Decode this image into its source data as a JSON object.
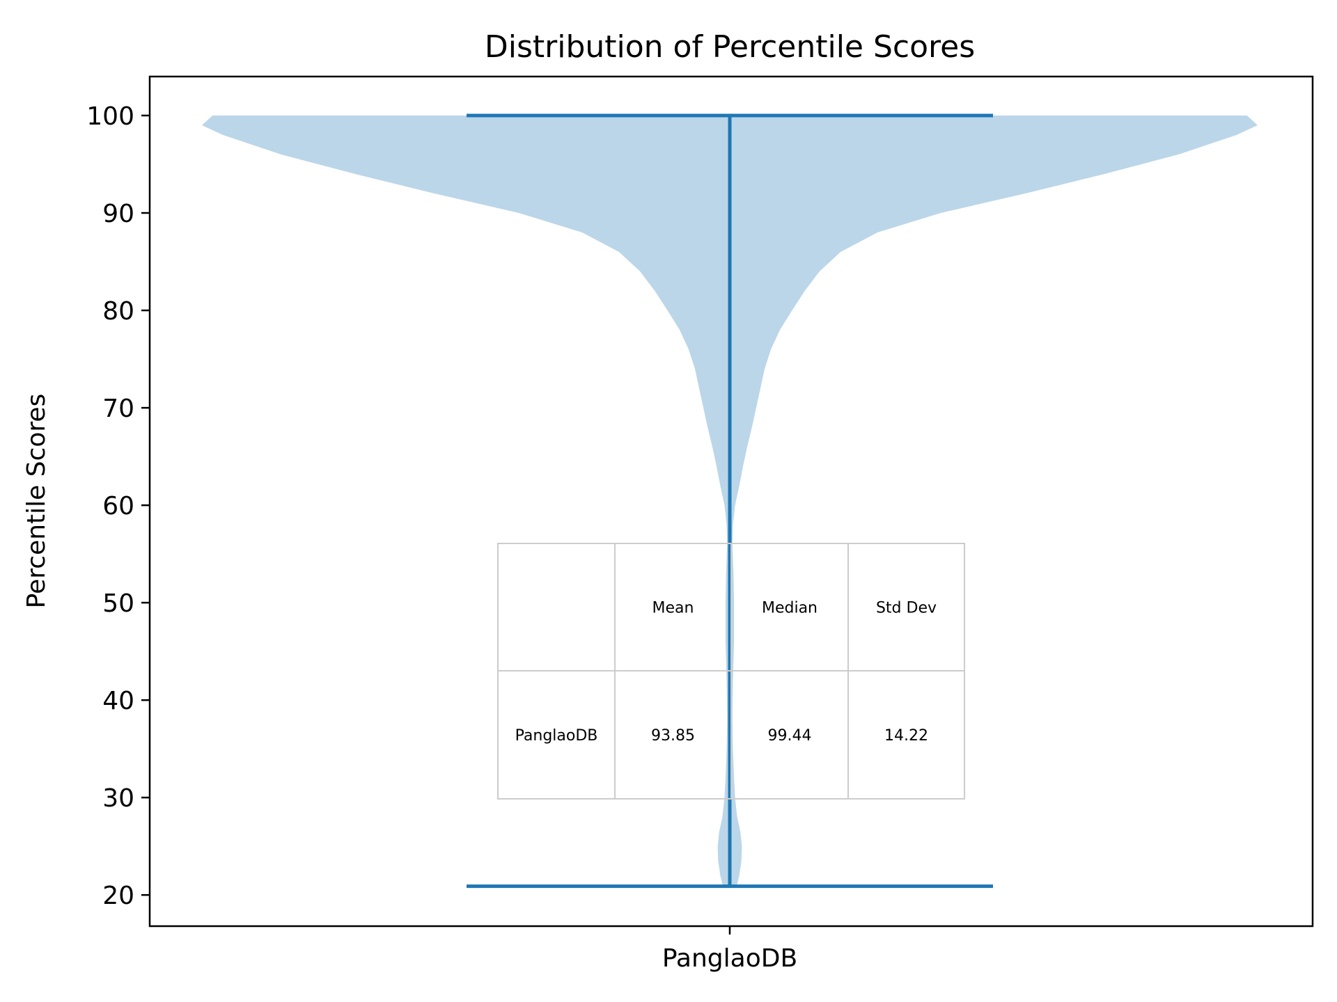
{
  "chart_data": {
    "type": "violin",
    "title": "Distribution of Percentile Scores",
    "xlabel": "",
    "ylabel": "Percentile Scores",
    "categories": [
      "PanglaoDB"
    ],
    "ylim": [
      16.8,
      104
    ],
    "yticks": [
      20,
      30,
      40,
      50,
      60,
      70,
      80,
      90,
      100
    ],
    "grid": false,
    "colors": {
      "body": "#1f77b4",
      "body_opacity": 0.3,
      "lines": "#1f77b4",
      "table_border": "#cccccc"
    },
    "violins": [
      {
        "category": "PanglaoDB",
        "min": 20.9,
        "max": 100,
        "density_profile": [
          [
            20.9,
            0.013
          ],
          [
            22,
            0.018
          ],
          [
            23.5,
            0.022
          ],
          [
            25,
            0.023
          ],
          [
            26.5,
            0.02
          ],
          [
            28,
            0.014
          ],
          [
            30,
            0.01
          ],
          [
            32,
            0.008
          ],
          [
            35,
            0.006
          ],
          [
            38,
            0.005
          ],
          [
            42,
            0.006
          ],
          [
            46,
            0.008
          ],
          [
            50,
            0.008
          ],
          [
            53,
            0.007
          ],
          [
            56,
            0.005
          ],
          [
            58,
            0.006
          ],
          [
            60,
            0.01
          ],
          [
            62,
            0.018
          ],
          [
            64,
            0.025
          ],
          [
            66,
            0.033
          ],
          [
            68,
            0.042
          ],
          [
            70,
            0.05
          ],
          [
            72,
            0.058
          ],
          [
            74,
            0.066
          ],
          [
            76,
            0.078
          ],
          [
            78,
            0.095
          ],
          [
            80,
            0.118
          ],
          [
            82,
            0.142
          ],
          [
            84,
            0.17
          ],
          [
            86,
            0.21
          ],
          [
            88,
            0.28
          ],
          [
            90,
            0.4
          ],
          [
            92,
            0.56
          ],
          [
            94,
            0.71
          ],
          [
            96,
            0.85
          ],
          [
            98,
            0.96
          ],
          [
            99,
            1.0
          ],
          [
            99.5,
            0.99
          ],
          [
            100,
            0.98
          ]
        ]
      }
    ],
    "table": {
      "columns": [
        "",
        "Mean",
        "Median",
        "Std Dev"
      ],
      "rows": [
        [
          "PanglaoDB",
          "93.85",
          "99.44",
          "14.22"
        ]
      ]
    }
  }
}
